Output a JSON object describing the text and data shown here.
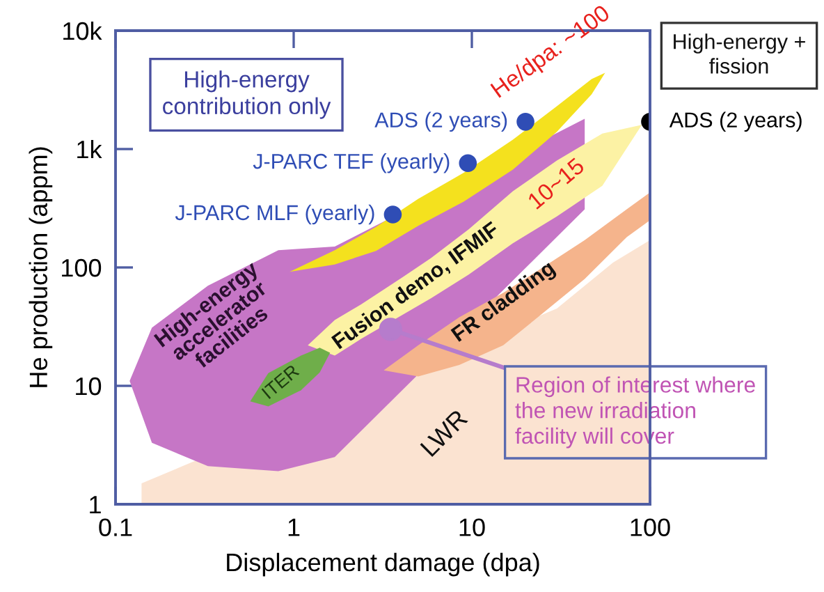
{
  "chart_data": {
    "type": "scatter",
    "log": "xy",
    "xlabel": "Displacement damage (dpa)",
    "ylabel": "He production (appm)",
    "xlim": [
      0.1,
      100
    ],
    "ylim": [
      1,
      10000
    ],
    "xticks": [
      0.1,
      1,
      10,
      100
    ],
    "yticks": [
      1,
      10,
      100,
      {
        "value": 1000,
        "label": "1k"
      },
      {
        "value": 10000,
        "label": "10k"
      }
    ],
    "series": [
      {
        "type": "line",
        "color": "#fbe3d1",
        "x": [
          0.14,
          30,
          62,
          100
        ],
        "values": [
          null,
          null,
          null,
          null
        ],
        "lower": [
          1,
          1,
          1,
          1
        ],
        "upper": [
          1.5,
          45,
          110,
          170
        ]
      },
      {
        "type": "line",
        "color": "#c676c6",
        "x": [
          0.12,
          0.16,
          0.33,
          0.82,
          1.7,
          43
        ],
        "values": [
          null,
          null,
          null,
          null,
          null,
          null
        ],
        "lower": [
          11,
          3.3,
          2.1,
          1.9,
          2.5,
          310
        ],
        "upper": [
          11,
          31,
          70,
          140,
          150,
          1800
        ]
      },
      {
        "type": "line",
        "color": "#f5b48c",
        "x": [
          3.2,
          5.0,
          8.5,
          15,
          25,
          43,
          74,
          100
        ],
        "values": [
          null,
          null,
          null,
          null,
          null,
          null,
          null,
          null
        ],
        "lower": [
          13.5,
          12,
          15,
          22,
          41,
          80,
          180,
          250
        ],
        "upper": [
          13.5,
          22,
          38,
          61,
          100,
          170,
          310,
          430
        ]
      },
      {
        "type": "line",
        "color": "#fcf2a4",
        "x": [
          1.2,
          1.7,
          2.4,
          4.1,
          5.9,
          9.6,
          17,
          30,
          54,
          90
        ],
        "values": [
          null,
          null,
          null,
          null,
          null,
          null,
          null,
          null,
          null,
          null
        ],
        "lower": [
          22,
          18,
          25,
          40,
          55,
          87,
          160,
          270,
          490,
          1600
        ],
        "upper": [
          22,
          36,
          49,
          83,
          120,
          210,
          440,
          800,
          1350,
          1600
        ]
      },
      {
        "type": "line",
        "color": "#f4e11e",
        "x": [
          0.95,
          1.7,
          2.9,
          5.0,
          9.0,
          17,
          30,
          47,
          56
        ],
        "values": [
          null,
          null,
          null,
          null,
          null,
          null,
          null,
          null,
          null
        ],
        "lower": [
          92,
          106,
          138,
          225,
          360,
          670,
          1400,
          2900,
          4400
        ],
        "upper": [
          92,
          140,
          220,
          380,
          630,
          1200,
          2300,
          3900,
          4400
        ]
      },
      {
        "type": "line",
        "color": "#6fae4a",
        "x": [
          0.57,
          0.72,
          1.1,
          1.4,
          1.6
        ],
        "values": [
          null,
          null,
          null,
          null,
          null
        ],
        "lower": [
          7.4,
          6.7,
          9.2,
          13,
          19
        ],
        "upper": [
          7.4,
          12.8,
          18,
          21,
          19
        ]
      },
      {
        "name": "ADS (2 years)",
        "color": "#2f4db5",
        "x": [
          20
        ],
        "values": [
          1700
        ]
      },
      {
        "name": "J-PARC TEF (yearly)",
        "color": "#2f4db5",
        "x": [
          9.5
        ],
        "values": [
          760
        ]
      },
      {
        "name": "J-PARC MLF (yearly)",
        "color": "#2f4db5",
        "x": [
          3.6
        ],
        "values": [
          280
        ]
      },
      {
        "name": "ADS (2 years)",
        "color": "#000000",
        "x": [
          100
        ],
        "values": [
          1700
        ]
      }
    ],
    "annotations": [
      "High-energy\ncontribution only",
      "High-energy +\nfission",
      "He/dpa: ~100",
      "10~15",
      "High-energy\naccelerator\nfacilities",
      "Fusion demo, IFMIF",
      "FR cladding",
      "ITER",
      "LWR",
      {
        "text": "Region of interest where\nthe new irradiation\nfacility will cover",
        "x": 3.5,
        "y": 30
      }
    ]
  }
}
